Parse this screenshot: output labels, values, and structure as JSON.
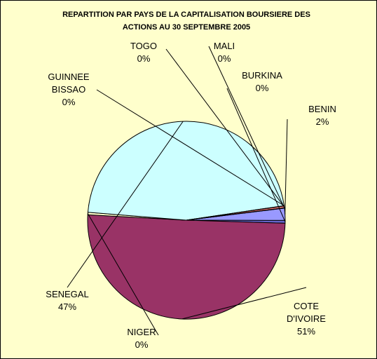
{
  "chart_data": {
    "type": "pie",
    "title_lines": [
      "REPARTITION PAR PAYS DE LA CAPITALISATION BOURSIERE DES",
      "ACTIONS AU 30 SEPTEMBRE 2005"
    ],
    "slices": [
      {
        "name": "BENIN",
        "name_lines": [
          "BENIN"
        ],
        "value": 2,
        "label": "2%",
        "color": "#9999ff"
      },
      {
        "name": "BURKINA",
        "name_lines": [
          "BURKINA"
        ],
        "value": 0.45,
        "label": "0%",
        "color": "#6666cc"
      },
      {
        "name": "COTE D'IVOIRE",
        "name_lines": [
          "COTE",
          "D'IVOIRE"
        ],
        "value": 50.6,
        "label": "51%",
        "color": "#993366"
      },
      {
        "name": "NIGER",
        "name_lines": [
          "NIGER"
        ],
        "value": 0.4,
        "label": "0%",
        "color": "#ffffcc"
      },
      {
        "name": "SENEGAL",
        "name_lines": [
          "SENEGAL"
        ],
        "value": 46.6,
        "label": "47%",
        "color": "#ccffff"
      },
      {
        "name": "GUINNEE BISSAO",
        "name_lines": [
          "GUINNEE",
          "BISSAO"
        ],
        "value": 0.05,
        "label": "0%",
        "color": "#660066"
      },
      {
        "name": "TOGO",
        "name_lines": [
          "TOGO"
        ],
        "value": 0.3,
        "label": "0%",
        "color": "#ff8080"
      },
      {
        "name": "MALI",
        "name_lines": [
          "MALI"
        ],
        "value": 0.05,
        "label": "0%",
        "color": "#0066cc"
      }
    ]
  }
}
